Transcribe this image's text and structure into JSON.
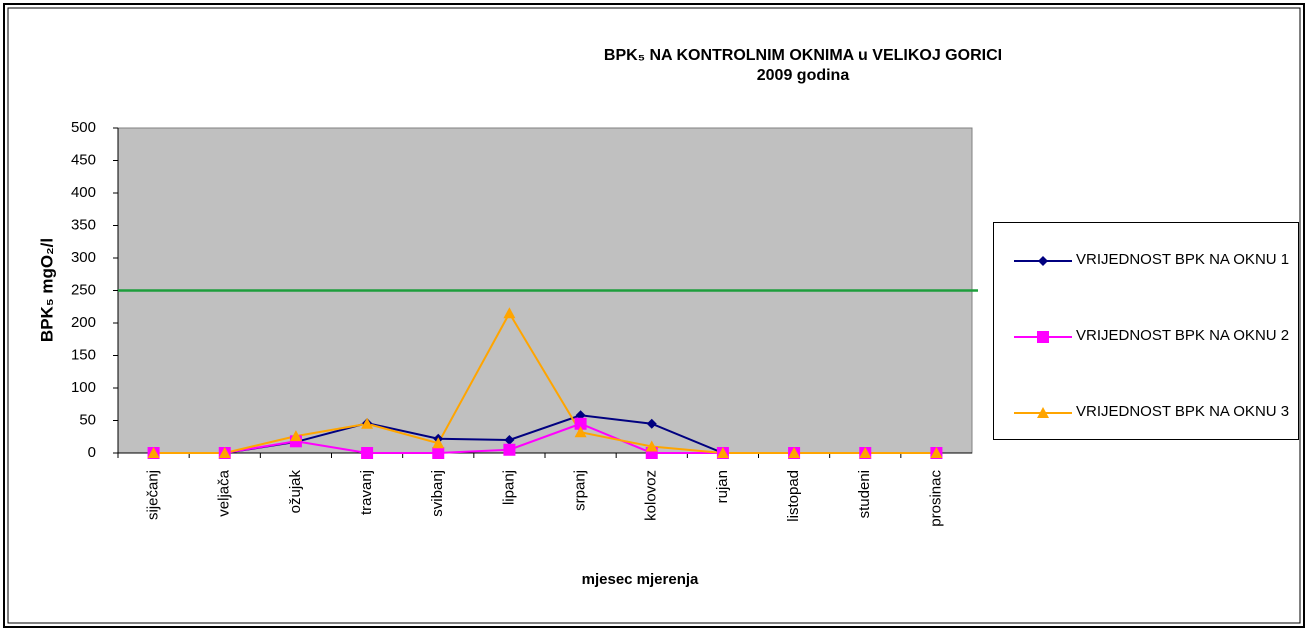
{
  "chart_data": {
    "type": "line",
    "title": [
      "BPK₅ NA KONTROLNIM OKNIMA u VELIKOJ GORICI",
      "2009 godina"
    ],
    "x_label": "mjesec mjerenja",
    "y_label": "BPK₅ mgO₂/l",
    "categories": [
      "siječanj",
      "veljača",
      "ožujak",
      "travanj",
      "svibanj",
      "lipanj",
      "srpanj",
      "kolovoz",
      "rujan",
      "listopad",
      "studeni",
      "prosinac"
    ],
    "series": [
      {
        "name": "VRIJEDNOST BPK NA OKNU 1",
        "color": "#000080",
        "marker": "diamond",
        "values": [
          0,
          0,
          17,
          46,
          22,
          20,
          58,
          45,
          0,
          0,
          0,
          0
        ]
      },
      {
        "name": "VRIJEDNOST BPK NA OKNU 2",
        "color": "#ff00ff",
        "marker": "square",
        "values": [
          0,
          0,
          18,
          0,
          0,
          5,
          45,
          0,
          0,
          0,
          0,
          0
        ]
      },
      {
        "name": "VRIJEDNOST BPK NA OKNU 3",
        "color": "#ffa500",
        "marker": "triangle",
        "values": [
          0,
          0,
          26,
          45,
          15,
          215,
          32,
          10,
          0,
          0,
          0,
          0
        ]
      }
    ],
    "threshold": {
      "value": 250,
      "color": "#1e9e3c"
    },
    "ylim": [
      0,
      500
    ],
    "yticks": [
      0,
      50,
      100,
      150,
      200,
      250,
      300,
      350,
      400,
      450,
      500
    ],
    "plot_background": "#c0c0c0",
    "legend": "right"
  }
}
